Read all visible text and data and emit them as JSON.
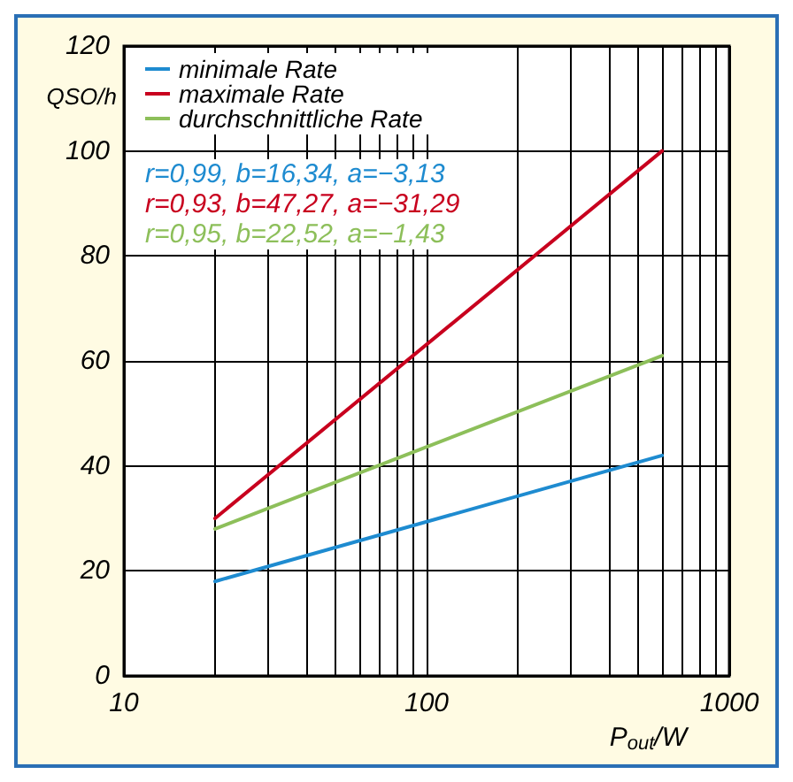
{
  "chart_data": {
    "type": "line",
    "xlabel": "P$_{out}$/W",
    "ylabel": "QSO/h",
    "log": "x",
    "x": [
      20,
      600
    ],
    "series": [
      {
        "name": "minimale Rate",
        "color": "#1e8bd0",
        "values": [
          18,
          42
        ]
      },
      {
        "name": "maximale Rate",
        "color": "#c8001e",
        "values": [
          30,
          100
        ]
      },
      {
        "name": "durchschnittliche Rate",
        "color": "#8dbf5a",
        "values": [
          28,
          61
        ]
      }
    ],
    "annotations": [
      "r=0,99, b=16,34, a=−3,13",
      "r=0,93, b=47,27, a=−31,29",
      "r=0,95, b=22,52, a=−1,43"
    ],
    "xlim": [
      10,
      1000
    ],
    "ylim": [
      0,
      120
    ],
    "xticks": [
      10,
      {
        "value": 20,
        "label": null
      },
      {
        "value": 30,
        "label": null
      },
      {
        "value": 40,
        "label": null
      },
      {
        "value": 50,
        "label": null
      },
      {
        "value": 60,
        "label": null
      },
      {
        "value": 70,
        "label": null
      },
      {
        "value": 80,
        "label": null
      },
      {
        "value": 90,
        "label": null
      },
      100,
      {
        "value": 200,
        "label": null
      },
      {
        "value": 300,
        "label": null
      },
      {
        "value": 400,
        "label": null
      },
      {
        "value": 500,
        "label": null
      },
      {
        "value": 600,
        "label": null
      },
      {
        "value": 700,
        "label": null
      },
      {
        "value": 800,
        "label": null
      },
      {
        "value": 900,
        "label": null
      },
      1000
    ],
    "yticks": [
      0,
      20,
      40,
      60,
      80,
      100,
      120
    ],
    "grid": true,
    "legend": "top left",
    "marker": "none",
    "line_style": "solid"
  }
}
